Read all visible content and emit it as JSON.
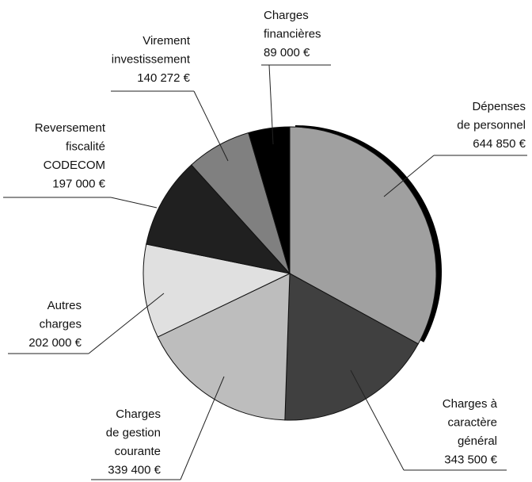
{
  "chart_data": {
    "type": "pie",
    "categories": [
      [
        "Dépenses",
        "de personnel"
      ],
      [
        "Charges à",
        "caractère",
        "général"
      ],
      [
        "Charges",
        "de gestion",
        "courante"
      ],
      [
        "Autres",
        "charges"
      ],
      [
        "Reversement",
        "fiscalité",
        "CODECOM"
      ],
      [
        "Virement",
        "investissement"
      ],
      [
        "Charges",
        "financières"
      ]
    ],
    "values": [
      644850,
      343500,
      339400,
      202000,
      197000,
      140272,
      89000
    ],
    "value_labels": [
      "644 850 €",
      "343 500 €",
      "339 400 €",
      "202 000 €",
      "197 000 €",
      "140 272 €",
      "89 000 €"
    ],
    "colors": [
      "#a0a0a0",
      "#404040",
      "#bdbdbd",
      "#e0e0e0",
      "#202020",
      "#808080",
      "#000000"
    ]
  }
}
